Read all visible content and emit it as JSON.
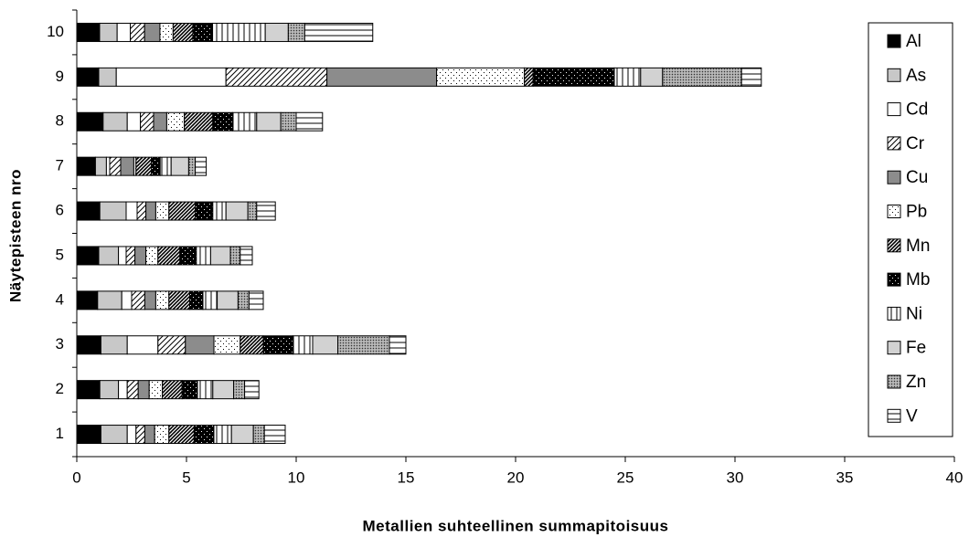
{
  "chart_data": {
    "type": "stacked_bar_horizontal",
    "x_label": "Metallien suhteellinen summapitoisuus",
    "y_label": "Näytepisteen nro",
    "categories": [
      "1",
      "2",
      "3",
      "4",
      "5",
      "6",
      "7",
      "8",
      "9",
      "10"
    ],
    "xlim": [
      0,
      40
    ],
    "xticks": [
      0,
      5,
      10,
      15,
      20,
      25,
      30,
      35,
      40
    ],
    "grid": false,
    "legend": "right",
    "series": [
      {
        "name": "Al",
        "color": "#000000",
        "pattern": "solid",
        "values": [
          1.1,
          1.05,
          1.1,
          0.95,
          1.0,
          1.05,
          0.85,
          1.2,
          1.0,
          1.04
        ]
      },
      {
        "name": "As",
        "color": "#c8c8c8",
        "pattern": "solid",
        "values": [
          1.2,
          0.85,
          1.2,
          1.1,
          0.9,
          1.2,
          0.5,
          1.1,
          0.8,
          0.8
        ]
      },
      {
        "name": "Cd",
        "color": "#ffffff",
        "pattern": "solid",
        "values": [
          0.4,
          0.4,
          1.4,
          0.45,
          0.35,
          0.5,
          0.15,
          0.6,
          5.0,
          0.6
        ]
      },
      {
        "name": "Cr",
        "color": "#ffffff",
        "pattern": "diagonal",
        "values": [
          0.4,
          0.5,
          1.25,
          0.6,
          0.4,
          0.4,
          0.5,
          0.6,
          4.6,
          0.65
        ]
      },
      {
        "name": "Cu",
        "color": "#8c8c8c",
        "pattern": "solid",
        "values": [
          0.45,
          0.5,
          1.3,
          0.5,
          0.5,
          0.45,
          0.6,
          0.6,
          5.0,
          0.7
        ]
      },
      {
        "name": "Pb",
        "color": "#ffffff",
        "pattern": "dots",
        "values": [
          0.65,
          0.6,
          1.2,
          0.6,
          0.55,
          0.6,
          0.1,
          0.8,
          4.0,
          0.6
        ]
      },
      {
        "name": "Mn",
        "color": "#ffffff",
        "pattern": "dense-diagonal",
        "values": [
          1.15,
          0.9,
          1.05,
          0.95,
          1.0,
          1.2,
          0.7,
          1.3,
          0.4,
          0.9
        ]
      },
      {
        "name": "Mb",
        "color": "#000000",
        "pattern": "dots",
        "values": [
          0.9,
          0.7,
          1.35,
          0.6,
          0.75,
          0.8,
          0.4,
          0.9,
          3.7,
          0.9
        ]
      },
      {
        "name": "Ni",
        "color": "#ffffff",
        "pattern": "vertical",
        "values": [
          0.8,
          0.7,
          0.9,
          0.65,
          0.65,
          0.6,
          0.5,
          1.1,
          1.2,
          2.4
        ]
      },
      {
        "name": "Fe",
        "color": "#d2d2d2",
        "pattern": "solid",
        "values": [
          1.0,
          0.95,
          1.15,
          0.95,
          0.9,
          1.0,
          0.8,
          1.1,
          1.0,
          1.05
        ]
      },
      {
        "name": "Zn",
        "color": "#a0a0a0",
        "pattern": "crosshatch",
        "values": [
          0.5,
          0.5,
          2.35,
          0.5,
          0.45,
          0.4,
          0.3,
          0.7,
          3.6,
          0.75
        ]
      },
      {
        "name": "V",
        "color": "#ffffff",
        "pattern": "horizontal",
        "values": [
          0.95,
          0.65,
          0.75,
          0.65,
          0.55,
          0.85,
          0.5,
          1.2,
          0.9,
          3.1
        ]
      }
    ]
  }
}
